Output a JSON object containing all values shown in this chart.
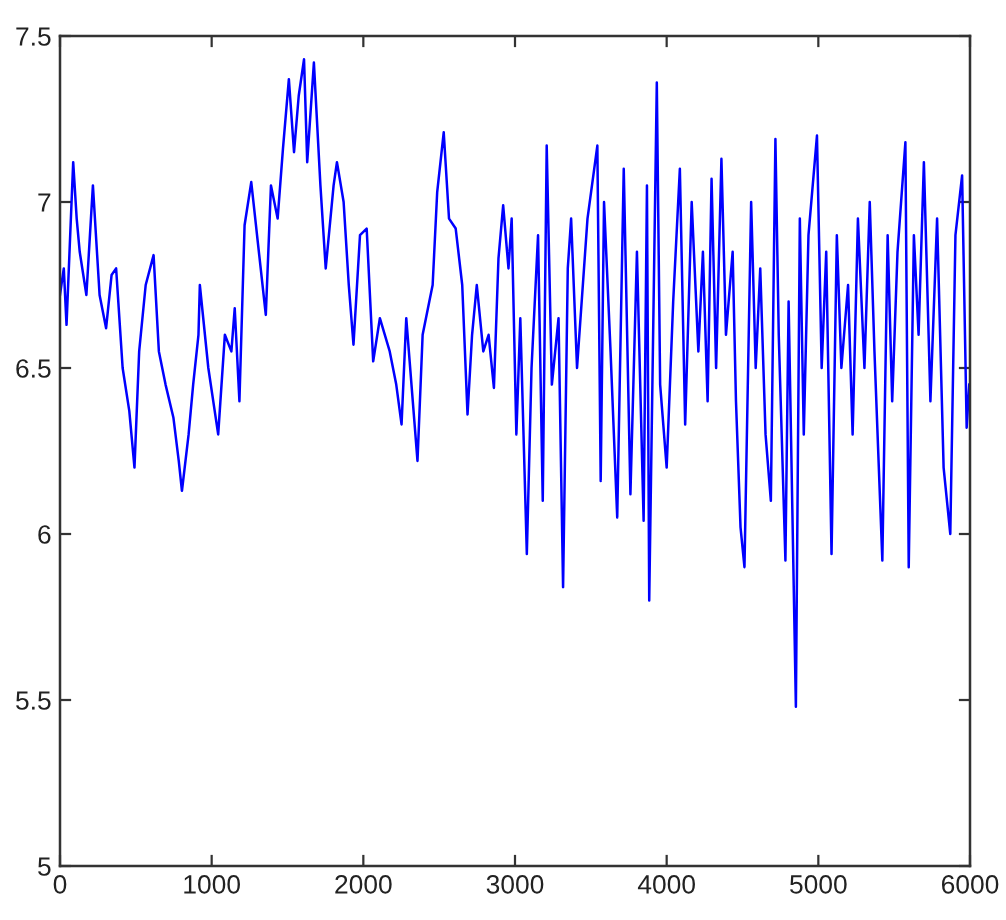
{
  "chart_data": {
    "type": "line",
    "color": "#0000ff",
    "marker": "none",
    "line_style": "solid",
    "xlim": [
      0,
      6000
    ],
    "ylim": [
      5,
      7.5
    ],
    "xticks": [
      0,
      1000,
      2000,
      3000,
      4000,
      5000,
      6000
    ],
    "yticks": [
      5,
      5.5,
      6,
      6.5,
      7,
      7.5
    ],
    "x": [
      0,
      25,
      43,
      87,
      110,
      130,
      174,
      217,
      261,
      304,
      340,
      370,
      413,
      457,
      491,
      522,
      565,
      617,
      652,
      696,
      748,
      783,
      804,
      848,
      878,
      913,
      922,
      978,
      1043,
      1087,
      1130,
      1152,
      1183,
      1217,
      1261,
      1304,
      1357,
      1391,
      1435,
      1470,
      1509,
      1543,
      1574,
      1609,
      1630,
      1674,
      1717,
      1752,
      1804,
      1826,
      1870,
      1904,
      1935,
      1978,
      2022,
      2065,
      2109,
      2174,
      2217,
      2252,
      2283,
      2326,
      2357,
      2391,
      2435,
      2457,
      2487,
      2530,
      2565,
      2609,
      2652,
      2687,
      2717,
      2748,
      2791,
      2826,
      2861,
      2891,
      2922,
      2957,
      2978,
      3009,
      3035,
      3078,
      3109,
      3152,
      3183,
      3209,
      3243,
      3287,
      3317,
      3348,
      3370,
      3409,
      3478,
      3543,
      3565,
      3587,
      3630,
      3674,
      3717,
      3761,
      3804,
      3848,
      3870,
      3885,
      3935,
      3957,
      4000,
      4043,
      4087,
      4122,
      4165,
      4209,
      4239,
      4270,
      4296,
      4326,
      4361,
      4391,
      4435,
      4457,
      4487,
      4513,
      4557,
      4587,
      4617,
      4652,
      4687,
      4717,
      4739,
      4783,
      4804,
      4852,
      4878,
      4904,
      4935,
      4991,
      5022,
      5052,
      5087,
      5122,
      5152,
      5196,
      5226,
      5261,
      5304,
      5339,
      5370,
      5422,
      5457,
      5487,
      5522,
      5574,
      5596,
      5630,
      5661,
      5696,
      5739,
      5783,
      5826,
      5870,
      5904,
      5948,
      5978,
      5995
    ],
    "values": [
      6.72,
      6.8,
      6.63,
      7.12,
      6.95,
      6.85,
      6.72,
      7.05,
      6.72,
      6.62,
      6.78,
      6.8,
      6.5,
      6.37,
      6.2,
      6.55,
      6.75,
      6.84,
      6.55,
      6.45,
      6.35,
      6.22,
      6.13,
      6.3,
      6.45,
      6.6,
      6.75,
      6.5,
      6.3,
      6.6,
      6.55,
      6.68,
      6.4,
      6.93,
      7.06,
      6.88,
      6.66,
      7.05,
      6.95,
      7.16,
      7.37,
      7.15,
      7.32,
      7.43,
      7.12,
      7.42,
      7.05,
      6.8,
      7.05,
      7.12,
      7.0,
      6.75,
      6.57,
      6.9,
      6.92,
      6.52,
      6.65,
      6.55,
      6.45,
      6.33,
      6.65,
      6.4,
      6.22,
      6.6,
      6.7,
      6.75,
      7.03,
      7.21,
      6.95,
      6.92,
      6.75,
      6.36,
      6.6,
      6.75,
      6.55,
      6.6,
      6.44,
      6.83,
      6.99,
      6.8,
      6.95,
      6.3,
      6.65,
      5.94,
      6.5,
      6.9,
      6.1,
      7.17,
      6.45,
      6.65,
      5.84,
      6.8,
      6.95,
      6.5,
      6.95,
      7.17,
      6.16,
      7.0,
      6.55,
      6.05,
      7.1,
      6.12,
      6.85,
      6.04,
      7.05,
      5.8,
      7.36,
      6.45,
      6.2,
      6.7,
      7.1,
      6.33,
      7.0,
      6.55,
      6.85,
      6.4,
      7.07,
      6.5,
      7.13,
      6.6,
      6.85,
      6.4,
      6.02,
      5.9,
      7.0,
      6.5,
      6.8,
      6.3,
      6.1,
      7.19,
      6.6,
      5.92,
      6.7,
      5.48,
      6.95,
      6.3,
      6.9,
      7.2,
      6.5,
      6.85,
      5.94,
      6.9,
      6.5,
      6.75,
      6.3,
      6.95,
      6.5,
      7.0,
      6.55,
      5.92,
      6.9,
      6.4,
      6.85,
      7.18,
      5.9,
      6.9,
      6.6,
      7.12,
      6.4,
      6.95,
      6.2,
      6.0,
      6.9,
      7.08,
      6.32,
      6.45
    ]
  }
}
